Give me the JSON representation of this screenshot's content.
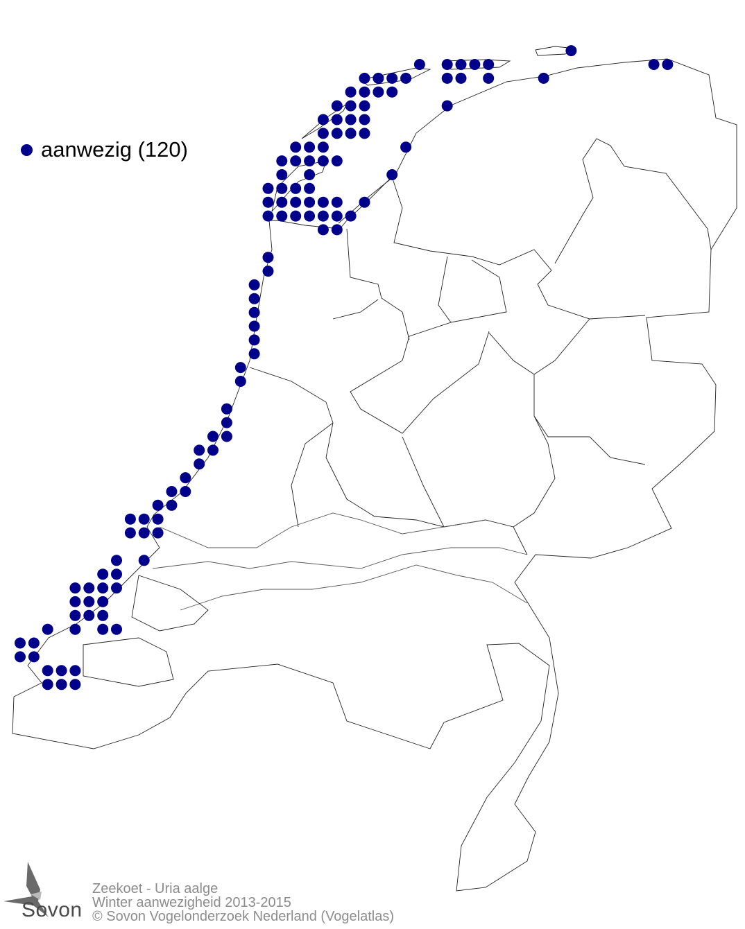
{
  "map": {
    "species_title": "Zeekoet - Uria aalge",
    "subtitle": "Winter aanwezigheid 2013-2015",
    "copyright": "© Sovon Vogelonderzoek Nederland (Vogelatlas)",
    "legend": {
      "label": "aanwezig (120)",
      "color": "#00008b",
      "count": 120
    },
    "logo": {
      "text": "Sovon",
      "icon": "swallow-icon"
    },
    "colors": {
      "dot": "#00008b",
      "outline": "#000000",
      "footer_text": "#8c8c8c"
    }
  }
}
